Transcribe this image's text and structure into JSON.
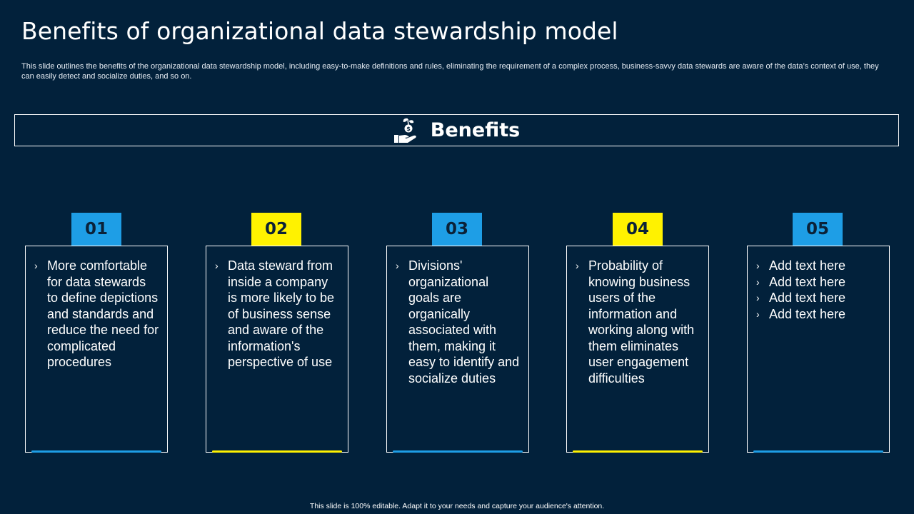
{
  "title": "Benefits of organizational data stewardship model",
  "subtitle": "This slide outlines the benefits of the organizational data stewardship model, including easy-to-make definitions and rules, eliminating the requirement of a complex process, business-savvy data stewards are aware of the data’s context of use, they can easily detect and socialize duties, and so on.",
  "benefits": {
    "label": "Benefits",
    "icon": "hand-plant-coin-icon"
  },
  "cards": [
    {
      "num": "01",
      "color": "#1e9ee6",
      "items": [
        "More comfortable for data stewards to define depictions and standards and reduce the need for complicated procedures"
      ]
    },
    {
      "num": "02",
      "color": "#fff200",
      "items": [
        "Data steward from inside a company is more likely to be of business sense and aware of the information's perspective of use"
      ]
    },
    {
      "num": "03",
      "color": "#1e9ee6",
      "items": [
        "Divisions' organizational goals are organically associated with them, making it easy to identify and socialize duties"
      ]
    },
    {
      "num": "04",
      "color": "#fff200",
      "items": [
        "Probability of knowing business users of the information and working along with them eliminates user engagement difficulties"
      ]
    },
    {
      "num": "05",
      "color": "#1e9ee6",
      "items": [
        "Add text here",
        "Add text here",
        "Add text here",
        "Add text here"
      ]
    }
  ],
  "footer": "This slide is 100% editable.  Adapt it to your needs and capture your audience's attention.",
  "colors": {
    "background": "#02213b",
    "blue": "#1e9ee6",
    "yellow": "#fff200"
  }
}
